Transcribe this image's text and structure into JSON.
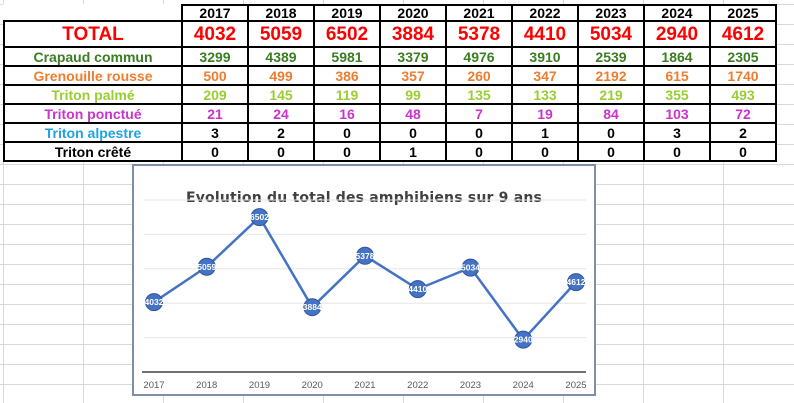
{
  "table": {
    "years": [
      "2017",
      "2018",
      "2019",
      "2020",
      "2021",
      "2022",
      "2023",
      "2024",
      "2025"
    ],
    "total": {
      "label": "TOTAL",
      "color": "#ff0000",
      "values": [
        "4032",
        "5059",
        "6502",
        "3884",
        "5378",
        "4410",
        "5034",
        "2940",
        "4612"
      ]
    },
    "species": [
      {
        "label": "Crapaud commun",
        "color": "#3a7d22",
        "values": [
          "3299",
          "4389",
          "5981",
          "3379",
          "4976",
          "3910",
          "2539",
          "1864",
          "2305"
        ]
      },
      {
        "label": "Grenouille rousse",
        "color": "#ed7d31",
        "values": [
          "500",
          "499",
          "386",
          "357",
          "260",
          "347",
          "2192",
          "615",
          "1740"
        ]
      },
      {
        "label": "Triton palmé",
        "color": "#9acd32",
        "values": [
          "209",
          "145",
          "119",
          "99",
          "135",
          "133",
          "219",
          "355",
          "493"
        ]
      },
      {
        "label": "Triton ponctué",
        "color": "#cc33cc",
        "values": [
          "21",
          "24",
          "16",
          "48",
          "7",
          "19",
          "84",
          "103",
          "72"
        ]
      },
      {
        "label": "Triton alpestre",
        "color": "#1fa2e0",
        "values": [
          "3",
          "2",
          "0",
          "0",
          "0",
          "1",
          "0",
          "3",
          "2"
        ],
        "value_color": "#000000"
      },
      {
        "label": "Triton crêté",
        "color": "#000000",
        "values": [
          "0",
          "0",
          "0",
          "1",
          "0",
          "0",
          "0",
          "0",
          "0"
        ]
      }
    ]
  },
  "chart_data": {
    "type": "line",
    "title": "Evolution du total des amphibiens sur 9 ans",
    "x": [
      "2017",
      "2018",
      "2019",
      "2020",
      "2021",
      "2022",
      "2023",
      "2024",
      "2025"
    ],
    "series": [
      {
        "values": [
          4032,
          5059,
          6502,
          3884,
          5378,
          4410,
          5034,
          2940,
          4612
        ],
        "color": "#4472c4"
      }
    ],
    "data_labels": true,
    "grid": true,
    "legend": "none"
  }
}
